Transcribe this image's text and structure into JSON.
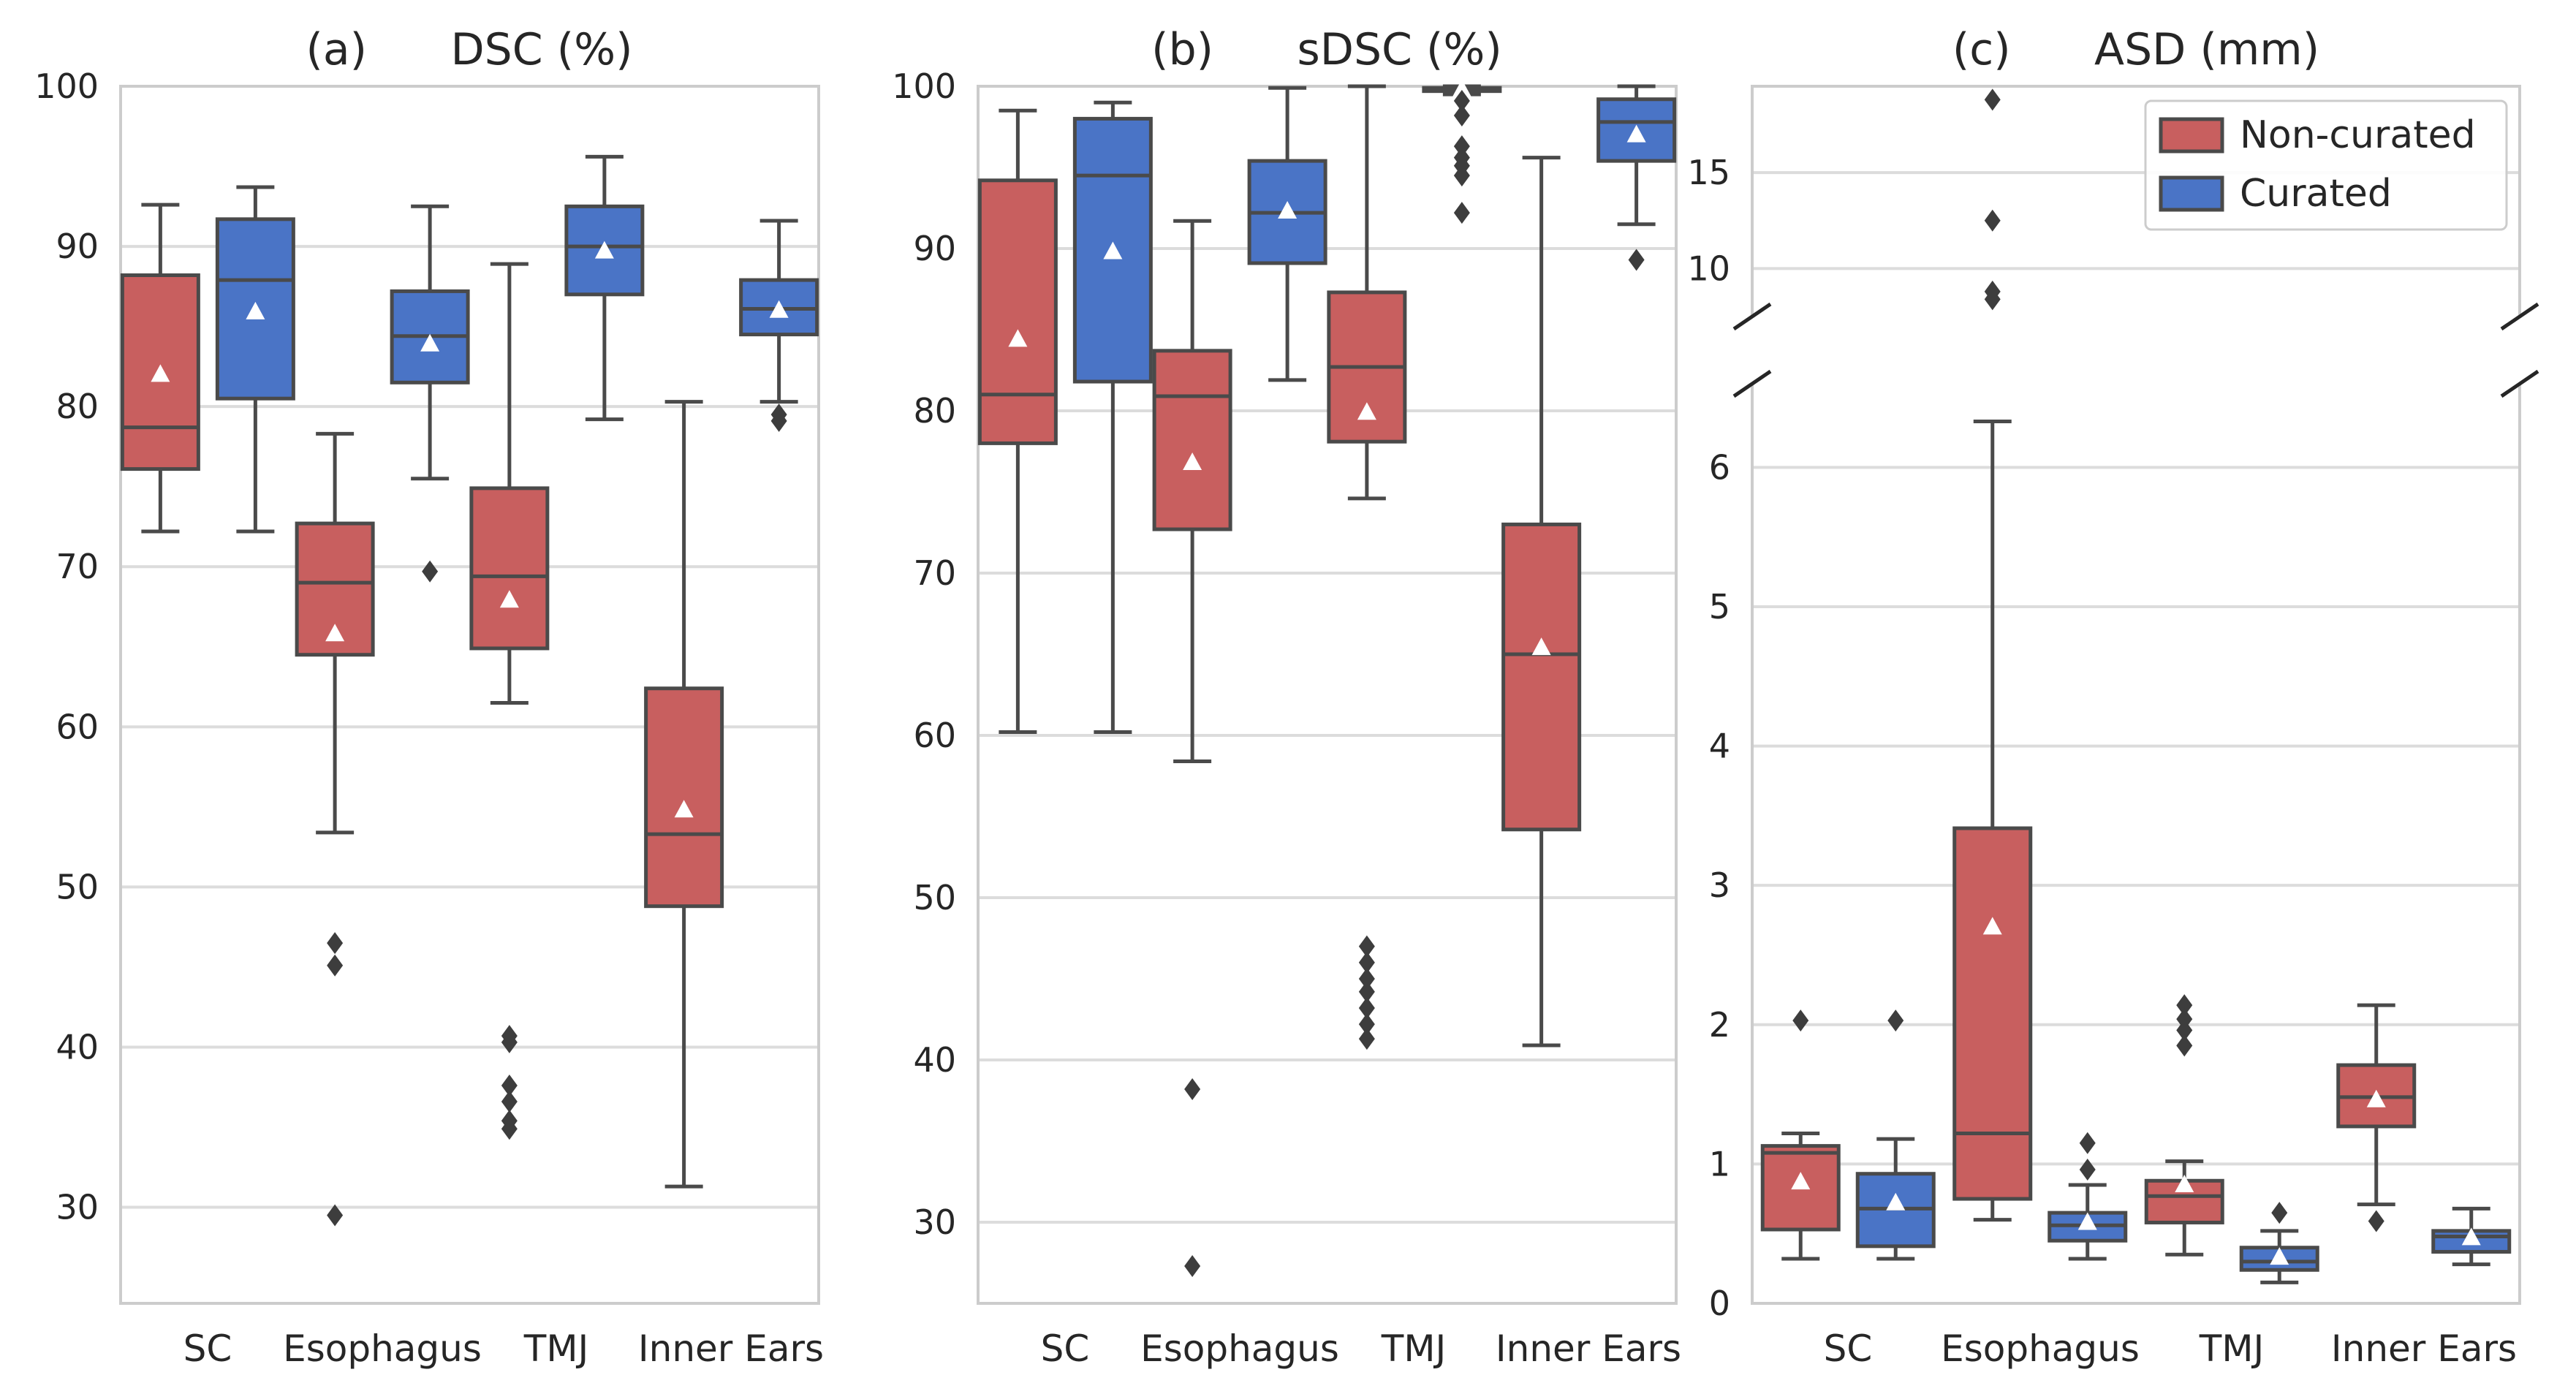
{
  "colors": {
    "non_curated": "#c85f5f",
    "curated": "#4a74c6"
  },
  "legend": {
    "placement": "top-right",
    "panel": 2,
    "entries": [
      "Non-curated",
      "Curated"
    ]
  },
  "chart_data": [
    {
      "type": "box",
      "title": "(a)      DSC (%)",
      "ylim": [
        24,
        100
      ],
      "yticks": [
        "100",
        "90",
        "80",
        "70",
        "60",
        "50",
        "40",
        "30"
      ],
      "categories": [
        "SC",
        "Esophagus",
        "TMJ",
        "Inner Ears"
      ],
      "grid": true,
      "series": [
        {
          "name": "Non-curated",
          "boxes": [
            {
              "whislo": 72.2,
              "q1": 76.1,
              "med": 78.7,
              "q3": 88.2,
              "whishi": 92.6,
              "mean": 82.0,
              "fliers": []
            },
            {
              "whislo": 53.4,
              "q1": 64.5,
              "med": 69.0,
              "q3": 72.7,
              "whishi": 78.3,
              "mean": 65.8,
              "fliers": [
                46.5,
                45.1,
                29.5
              ]
            },
            {
              "whislo": 61.5,
              "q1": 64.9,
              "med": 69.4,
              "q3": 74.9,
              "whishi": 88.9,
              "mean": 67.9,
              "fliers": [
                40.7,
                40.3,
                37.6,
                36.6,
                35.4,
                34.9
              ]
            },
            {
              "whislo": 31.3,
              "q1": 48.8,
              "med": 53.3,
              "q3": 62.4,
              "whishi": 80.3,
              "mean": 54.8,
              "fliers": []
            }
          ]
        },
        {
          "name": "Curated",
          "boxes": [
            {
              "whislo": 72.2,
              "q1": 80.5,
              "med": 87.9,
              "q3": 91.7,
              "whishi": 93.7,
              "mean": 85.9,
              "fliers": []
            },
            {
              "whislo": 75.5,
              "q1": 81.5,
              "med": 84.4,
              "q3": 87.2,
              "whishi": 92.5,
              "mean": 83.9,
              "fliers": [
                69.7
              ]
            },
            {
              "whislo": 79.2,
              "q1": 87.0,
              "med": 90.0,
              "q3": 92.5,
              "whishi": 95.6,
              "mean": 89.7,
              "fliers": []
            },
            {
              "whislo": 80.3,
              "q1": 84.5,
              "med": 86.1,
              "q3": 87.9,
              "whishi": 91.6,
              "mean": 86.0,
              "fliers": [
                79.5,
                79.1
              ]
            }
          ]
        }
      ]
    },
    {
      "type": "box",
      "title": "(b)      sDSC (%)",
      "ylim": [
        25,
        100
      ],
      "yticks": [
        "100",
        "90",
        "80",
        "70",
        "60",
        "50",
        "40",
        "30"
      ],
      "categories": [
        "SC",
        "Esophagus",
        "TMJ",
        "Inner Ears"
      ],
      "grid": true,
      "series": [
        {
          "name": "Non-curated",
          "boxes": [
            {
              "whislo": 60.2,
              "q1": 78.0,
              "med": 81.0,
              "q3": 94.2,
              "whishi": 98.5,
              "mean": 84.4,
              "fliers": []
            },
            {
              "whislo": 58.4,
              "q1": 72.7,
              "med": 80.9,
              "q3": 83.7,
              "whishi": 91.7,
              "mean": 76.8,
              "fliers": [
                38.2,
                27.3
              ]
            },
            {
              "whislo": 74.6,
              "q1": 78.1,
              "med": 82.7,
              "q3": 87.3,
              "whishi": 100.0,
              "mean": 79.9,
              "fliers": [
                47.0,
                46.0,
                45.0,
                44.2,
                43.2,
                42.2,
                41.3
              ]
            },
            {
              "whislo": 40.9,
              "q1": 54.2,
              "med": 65.0,
              "q3": 73.0,
              "whishi": 95.6,
              "mean": 65.4,
              "fliers": []
            }
          ]
        },
        {
          "name": "Curated",
          "boxes": [
            {
              "whislo": 60.2,
              "q1": 81.8,
              "med": 94.5,
              "q3": 98.0,
              "whishi": 99.0,
              "mean": 89.8,
              "fliers": []
            },
            {
              "whislo": 81.9,
              "q1": 89.1,
              "med": 92.2,
              "q3": 95.4,
              "whishi": 99.9,
              "mean": 92.3,
              "fliers": []
            },
            {
              "whislo": 99.5,
              "q1": 99.7,
              "med": 99.8,
              "q3": 99.9,
              "whishi": 100.0,
              "mean": 99.8,
              "fliers": [
                99.1,
                98.2,
                96.3,
                95.6,
                95.1,
                94.5,
                92.2
              ]
            },
            {
              "whislo": 91.5,
              "q1": 95.4,
              "med": 97.8,
              "q3": 99.2,
              "whishi": 100.0,
              "mean": 97.0,
              "fliers": [
                89.3
              ]
            }
          ]
        }
      ]
    },
    {
      "type": "box",
      "title": "(c)      ASD (mm)",
      "broken_axis": true,
      "ylim_lower": [
        0,
        6.6
      ],
      "ylim_upper": [
        7.5,
        19.5
      ],
      "yticks_lower": [
        "0",
        "1",
        "2",
        "3",
        "4",
        "5",
        "6"
      ],
      "yticks_upper": [
        "10",
        "15"
      ],
      "categories": [
        "SC",
        "Esophagus",
        "TMJ",
        "Inner Ears"
      ],
      "grid": true,
      "series": [
        {
          "name": "Non-curated",
          "boxes": [
            {
              "whislo": 0.32,
              "q1": 0.53,
              "med": 1.08,
              "q3": 1.13,
              "whishi": 1.22,
              "mean": 0.87,
              "fliers": [
                2.03
              ]
            },
            {
              "whislo": 0.6,
              "q1": 0.75,
              "med": 1.22,
              "q3": 3.41,
              "whishi": 6.33,
              "mean": 2.7,
              "fliers": [
                18.8,
                12.5,
                8.8,
                8.4
              ]
            },
            {
              "whislo": 0.35,
              "q1": 0.58,
              "med": 0.77,
              "q3": 0.88,
              "whishi": 1.02,
              "mean": 0.85,
              "fliers": [
                2.14,
                2.04,
                1.96,
                1.85
              ]
            },
            {
              "whislo": 0.71,
              "q1": 1.27,
              "med": 1.48,
              "q3": 1.71,
              "whishi": 2.14,
              "mean": 1.46,
              "fliers": [
                0.59
              ]
            }
          ]
        },
        {
          "name": "Curated",
          "boxes": [
            {
              "whislo": 0.32,
              "q1": 0.41,
              "med": 0.68,
              "q3": 0.93,
              "whishi": 1.18,
              "mean": 0.72,
              "fliers": [
                2.03
              ]
            },
            {
              "whislo": 0.32,
              "q1": 0.45,
              "med": 0.56,
              "q3": 0.65,
              "whishi": 0.85,
              "mean": 0.58,
              "fliers": [
                1.15,
                0.96
              ]
            },
            {
              "whislo": 0.15,
              "q1": 0.24,
              "med": 0.3,
              "q3": 0.4,
              "whishi": 0.52,
              "mean": 0.33,
              "fliers": [
                0.65
              ]
            },
            {
              "whislo": 0.28,
              "q1": 0.37,
              "med": 0.48,
              "q3": 0.52,
              "whishi": 0.68,
              "mean": 0.47,
              "fliers": []
            }
          ]
        }
      ]
    }
  ]
}
